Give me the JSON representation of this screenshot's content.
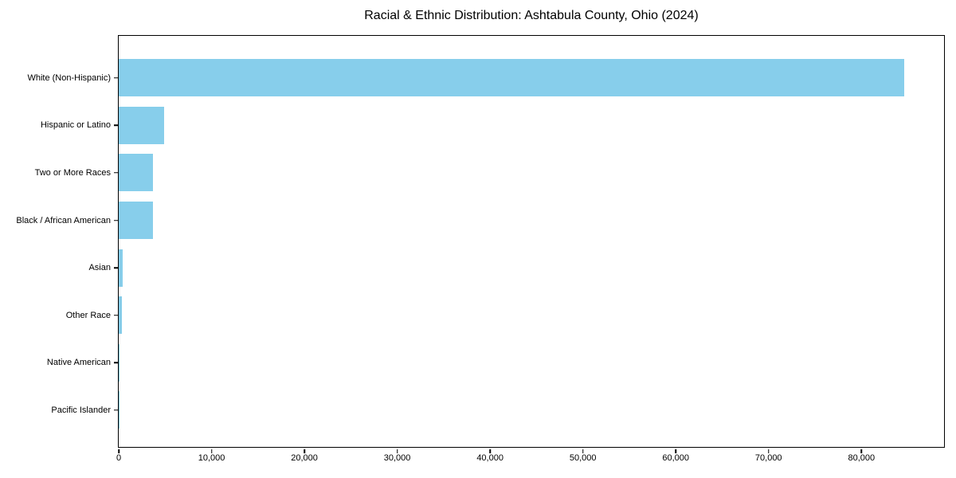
{
  "chart_data": {
    "type": "bar",
    "orientation": "horizontal",
    "title": "Racial & Ethnic Distribution: Ashtabula County, Ohio (2024)",
    "categories": [
      "White (Non-Hispanic)",
      "Hispanic or Latino",
      "Two or More Races",
      "Black / African American",
      "Asian",
      "Other Race",
      "Native American",
      "Pacific Islander"
    ],
    "values": [
      84600,
      4900,
      3650,
      3700,
      420,
      330,
      90,
      25
    ],
    "xlabel": "",
    "ylabel": "",
    "xlim": [
      0,
      88900
    ],
    "xticks": [
      {
        "value": 0,
        "label": "0"
      },
      {
        "value": 10000,
        "label": "10,000"
      },
      {
        "value": 20000,
        "label": "20,000"
      },
      {
        "value": 30000,
        "label": "30,000"
      },
      {
        "value": 40000,
        "label": "40,000"
      },
      {
        "value": 50000,
        "label": "50,000"
      },
      {
        "value": 60000,
        "label": "60,000"
      },
      {
        "value": 70000,
        "label": "70,000"
      },
      {
        "value": 80000,
        "label": "80,000"
      }
    ],
    "grid": false,
    "legend": false,
    "bar_color": "#87CEEB",
    "frame_color": "#000000",
    "text_color": "#000000",
    "background": "#FFFFFF"
  }
}
